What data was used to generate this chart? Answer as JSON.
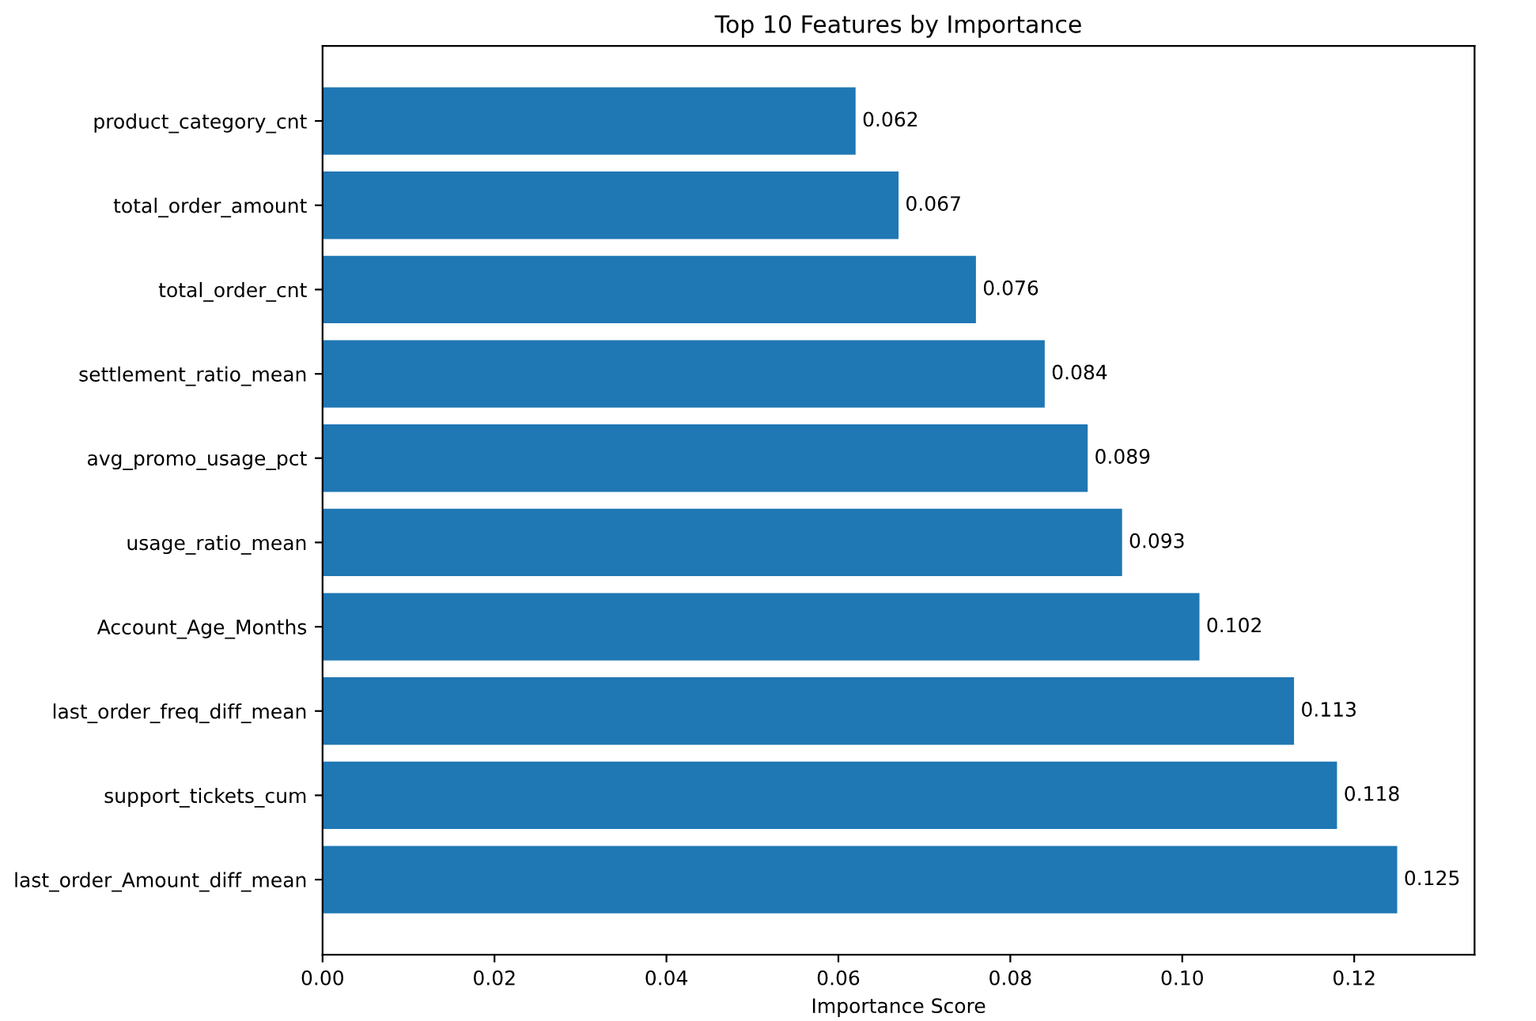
{
  "chart_data": {
    "type": "bar",
    "orientation": "horizontal",
    "title": "Top 10 Features by Importance",
    "xlabel": "Importance Score",
    "categories": [
      "product_category_cnt",
      "total_order_amount",
      "total_order_cnt",
      "settlement_ratio_mean",
      "avg_promo_usage_pct",
      "usage_ratio_mean",
      "Account_Age_Months",
      "last_order_freq_diff_mean",
      "support_tickets_cum",
      "last_order_Amount_diff_mean"
    ],
    "values": [
      0.062,
      0.067,
      0.076,
      0.084,
      0.089,
      0.093,
      0.102,
      0.113,
      0.118,
      0.125
    ],
    "color": "#1f77b4",
    "data_labels": true,
    "xlim": [
      0,
      0.134
    ],
    "xticks": [
      {
        "value": 0,
        "label": "0.00"
      },
      {
        "value": 0.02,
        "label": "0.02"
      },
      {
        "value": 0.04,
        "label": "0.04"
      },
      {
        "value": 0.06,
        "label": "0.06"
      },
      {
        "value": 0.08,
        "label": "0.08"
      },
      {
        "value": 0.1,
        "label": "0.10"
      },
      {
        "value": 0.12,
        "label": "0.12"
      }
    ],
    "grid": false,
    "legend": false
  }
}
